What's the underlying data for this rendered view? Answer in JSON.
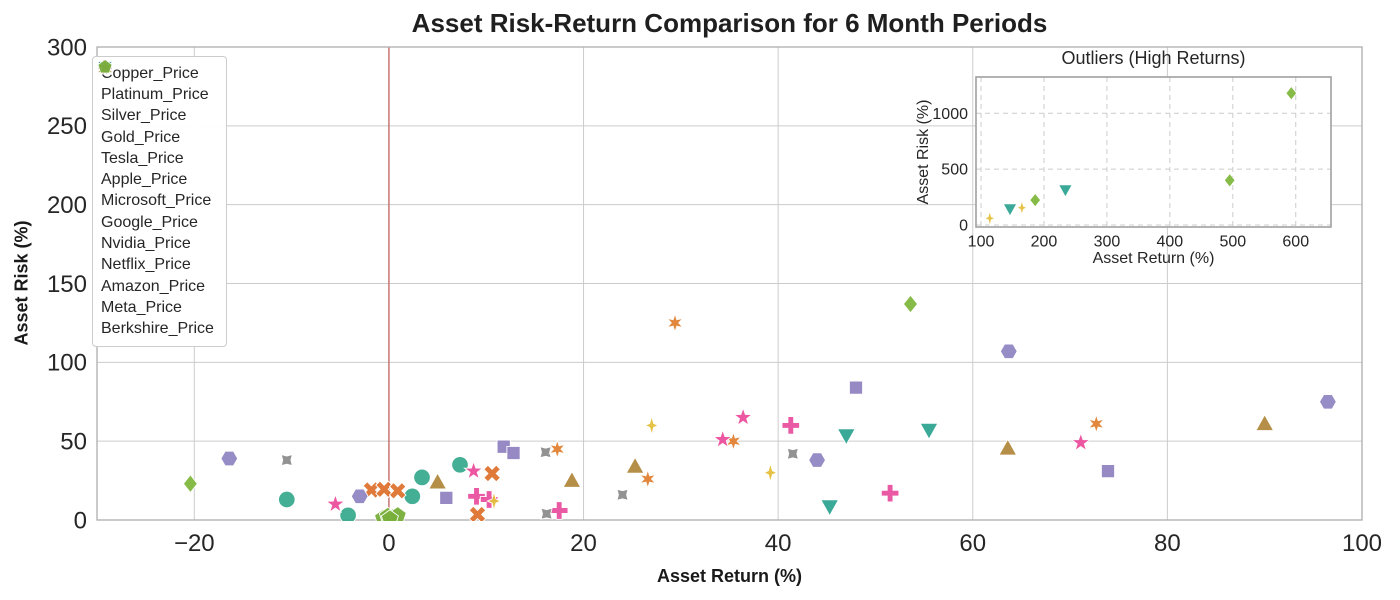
{
  "chart_data": {
    "type": "scatter",
    "title": "Asset Risk-Return Comparison for 6 Month Periods",
    "xlabel": "Asset Return (%)",
    "ylabel": "Asset Risk (%)",
    "xlim": [
      -30,
      100
    ],
    "ylim": [
      0,
      300
    ],
    "xticks": [
      -20,
      0,
      20,
      40,
      60,
      80,
      100
    ],
    "yticks": [
      0,
      50,
      100,
      150,
      200,
      250,
      300
    ],
    "grid": "on",
    "legend_position": "upper left",
    "zero_line": {
      "x": 0,
      "color": "#bf524d"
    },
    "grid_color": "#cccccc",
    "spine_color": "#aeaeae",
    "series": [
      {
        "name": "Copper_Price",
        "marker": "circle",
        "color": "#3aab8e",
        "points": [
          [
            -10.5,
            13
          ],
          [
            -4.2,
            3
          ],
          [
            2.4,
            15
          ],
          [
            3.4,
            27
          ],
          [
            7.3,
            35
          ]
        ]
      },
      {
        "name": "Platinum_Price",
        "marker": "x-bold",
        "color": "#dd7330",
        "points": [
          [
            -1.8,
            19
          ],
          [
            -0.5,
            19.5
          ],
          [
            0.9,
            18.5
          ],
          [
            9.1,
            3.5
          ],
          [
            10.6,
            29.5
          ]
        ]
      },
      {
        "name": "Silver_Price",
        "marker": "square",
        "color": "#9183c1",
        "points": [
          [
            5.9,
            14
          ],
          [
            11.8,
            46.5
          ],
          [
            12.8,
            42.5
          ],
          [
            48,
            84
          ],
          [
            73.9,
            31
          ]
        ]
      },
      {
        "name": "Gold_Price",
        "marker": "plus",
        "color": "#e9519f",
        "points": [
          [
            9.0,
            15
          ],
          [
            10.3,
            13
          ],
          [
            17.5,
            6
          ],
          [
            41.3,
            60
          ],
          [
            51.5,
            17
          ]
        ]
      },
      {
        "name": "Tesla_Price",
        "marker": "diamond",
        "color": "#7fb73e",
        "points": [
          [
            -20.4,
            23
          ],
          [
            53.6,
            137
          ],
          [
            186,
            223
          ],
          [
            495,
            400
          ],
          [
            593,
            1180
          ]
        ]
      },
      {
        "name": "Apple_Price",
        "marker": "thin-star",
        "color": "#e5bf3c",
        "points": [
          [
            10.8,
            12
          ],
          [
            27,
            60
          ],
          [
            39.2,
            30
          ],
          [
            114,
            60
          ],
          [
            165,
            155
          ]
        ]
      },
      {
        "name": "Microsoft_Price",
        "marker": "triangle-up",
        "color": "#b1893d",
        "points": [
          [
            5.0,
            24
          ],
          [
            18.8,
            25
          ],
          [
            25.3,
            34
          ],
          [
            63.6,
            45.5
          ],
          [
            90,
            61
          ]
        ]
      },
      {
        "name": "Google_Price",
        "marker": "pinched-x",
        "color": "#8c8c8c",
        "points": [
          [
            -10.5,
            38
          ],
          [
            16.1,
            43
          ],
          [
            16.2,
            4
          ],
          [
            24,
            16
          ],
          [
            41.5,
            42
          ]
        ]
      },
      {
        "name": "Nvidia_Price",
        "marker": "triangle-down",
        "color": "#2fa492",
        "points": [
          [
            45.3,
            8.5
          ],
          [
            47,
            53.5
          ],
          [
            55.5,
            57
          ],
          [
            146,
            143
          ],
          [
            234,
            313
          ]
        ]
      },
      {
        "name": "Netflix_Price",
        "marker": "star6",
        "color": "#e08132",
        "points": [
          [
            17.3,
            45
          ],
          [
            26.6,
            26
          ],
          [
            29.4,
            125
          ],
          [
            35.4,
            50
          ],
          [
            72.7,
            61
          ]
        ]
      },
      {
        "name": "Amazon_Price",
        "marker": "hexagon",
        "color": "#9087c3",
        "points": [
          [
            -16.4,
            39
          ],
          [
            -3.0,
            15
          ],
          [
            44,
            38
          ],
          [
            63.7,
            107
          ],
          [
            96.5,
            75
          ]
        ]
      },
      {
        "name": "Meta_Price",
        "marker": "star5",
        "color": "#ec4e9d",
        "points": [
          [
            -5.5,
            10
          ],
          [
            8.7,
            31
          ],
          [
            34.3,
            51
          ],
          [
            36.4,
            65
          ],
          [
            71.1,
            49
          ]
        ]
      },
      {
        "name": "Berkshire_Price",
        "marker": "pentagon",
        "color": "#77af3a",
        "points": [
          [
            -0.6,
            1.2
          ],
          [
            -0.1,
            2.4
          ],
          [
            0.4,
            1.6
          ],
          [
            0.9,
            2.8
          ],
          [
            0.1,
            0.8
          ]
        ]
      }
    ],
    "inset": {
      "title": "Outliers (High Returns)",
      "xlabel": "Asset Return (%)",
      "ylabel": "Asset Risk (%)",
      "xlim": [
        92,
        656
      ],
      "ylim": [
        -18,
        1325
      ],
      "xticks": [
        100,
        200,
        300,
        400,
        500,
        600
      ],
      "yticks": [
        0,
        500,
        1000
      ],
      "threshold_x": 100,
      "grid_style": "dashed"
    }
  }
}
